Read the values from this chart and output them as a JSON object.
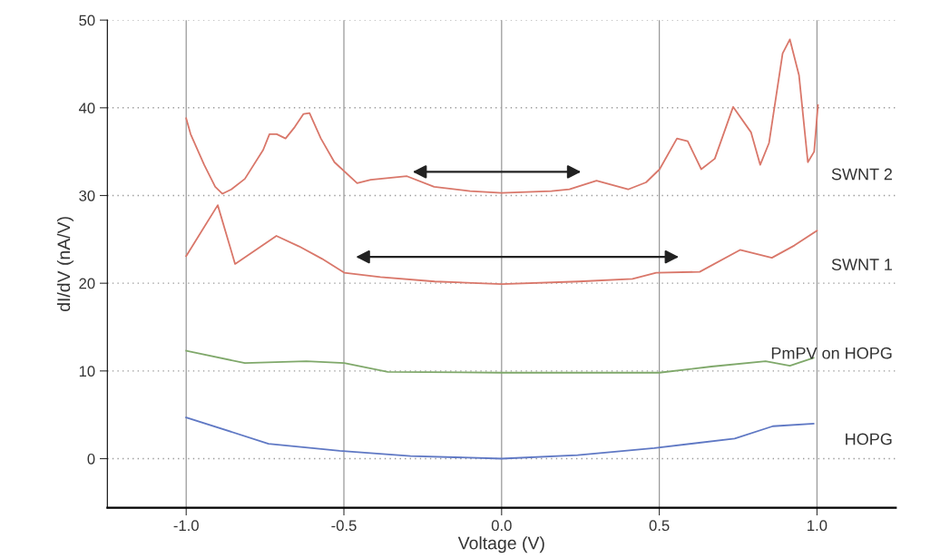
{
  "chart_data": {
    "type": "line",
    "xlabel": "Voltage (V)",
    "ylabel": "dI/dV (nA/V)",
    "xlim": [
      -1.25,
      1.25
    ],
    "ylim": [
      -5.6,
      50
    ],
    "xticks": [
      {
        "value": -1,
        "label": "-1.0"
      },
      {
        "value": -0.5,
        "label": "-0.5"
      },
      {
        "value": 0,
        "label": "0.0"
      },
      {
        "value": 0.5,
        "label": "0.5"
      },
      {
        "value": 1,
        "label": "1.0"
      }
    ],
    "yticks": [
      0,
      10,
      20,
      30,
      40,
      50
    ],
    "grid": true,
    "legend": false,
    "marker": "none",
    "line_style": "solid",
    "series": [
      {
        "name": "SWNT 2",
        "color": "#d9776a",
        "x": [
          -1.0,
          -0.986,
          -0.943,
          -0.908,
          -0.885,
          -0.857,
          -0.814,
          -0.756,
          -0.736,
          -0.713,
          -0.685,
          -0.656,
          -0.628,
          -0.609,
          -0.573,
          -0.53,
          -0.458,
          -0.415,
          -0.3,
          -0.214,
          -0.1,
          0.0,
          0.158,
          0.215,
          0.301,
          0.401,
          0.458,
          0.501,
          0.556,
          0.59,
          0.633,
          0.676,
          0.734,
          0.791,
          0.82,
          0.848,
          0.891,
          0.914,
          0.943,
          0.971,
          0.991,
          1.003
        ],
        "values": [
          38.8,
          37.0,
          33.5,
          31.0,
          30.2,
          30.7,
          31.9,
          35.2,
          37.0,
          37.0,
          36.5,
          37.8,
          39.3,
          39.4,
          36.5,
          33.8,
          31.4,
          31.8,
          32.2,
          31.0,
          30.5,
          30.3,
          30.5,
          30.7,
          31.7,
          30.7,
          31.5,
          33.0,
          36.5,
          36.2,
          33.0,
          34.2,
          40.1,
          37.2,
          33.5,
          36.0,
          46.2,
          47.8,
          43.7,
          33.8,
          35.0,
          40.3
        ]
      },
      {
        "name": "SWNT 1",
        "color": "#d9776a",
        "x": [
          -1.0,
          -0.9,
          -0.845,
          -0.714,
          -0.642,
          -0.57,
          -0.499,
          -0.384,
          -0.212,
          0.0,
          0.244,
          0.415,
          0.49,
          0.628,
          0.756,
          0.857,
          0.928,
          1.0
        ],
        "values": [
          23.1,
          28.9,
          22.2,
          25.4,
          24.2,
          22.8,
          21.2,
          20.7,
          20.2,
          19.9,
          20.2,
          20.5,
          21.2,
          21.3,
          23.8,
          22.9,
          24.3,
          26.0
        ]
      },
      {
        "name": "PmPV on HOPG",
        "color": "#7fa86a",
        "x": [
          -1.0,
          -0.814,
          -0.619,
          -0.499,
          -0.361,
          0.0,
          0.5,
          0.665,
          0.837,
          0.914,
          0.989
        ],
        "values": [
          12.3,
          10.9,
          11.1,
          10.9,
          9.9,
          9.8,
          9.8,
          10.5,
          11.1,
          10.6,
          11.5
        ]
      },
      {
        "name": "HOPG",
        "color": "#5f78c4",
        "x": [
          -1.0,
          -0.739,
          -0.513,
          -0.289,
          0.0,
          0.241,
          0.484,
          0.739,
          0.86,
          0.989
        ],
        "values": [
          4.7,
          1.7,
          0.9,
          0.3,
          0.0,
          0.4,
          1.2,
          2.3,
          3.7,
          4.0
        ]
      }
    ]
  }
}
